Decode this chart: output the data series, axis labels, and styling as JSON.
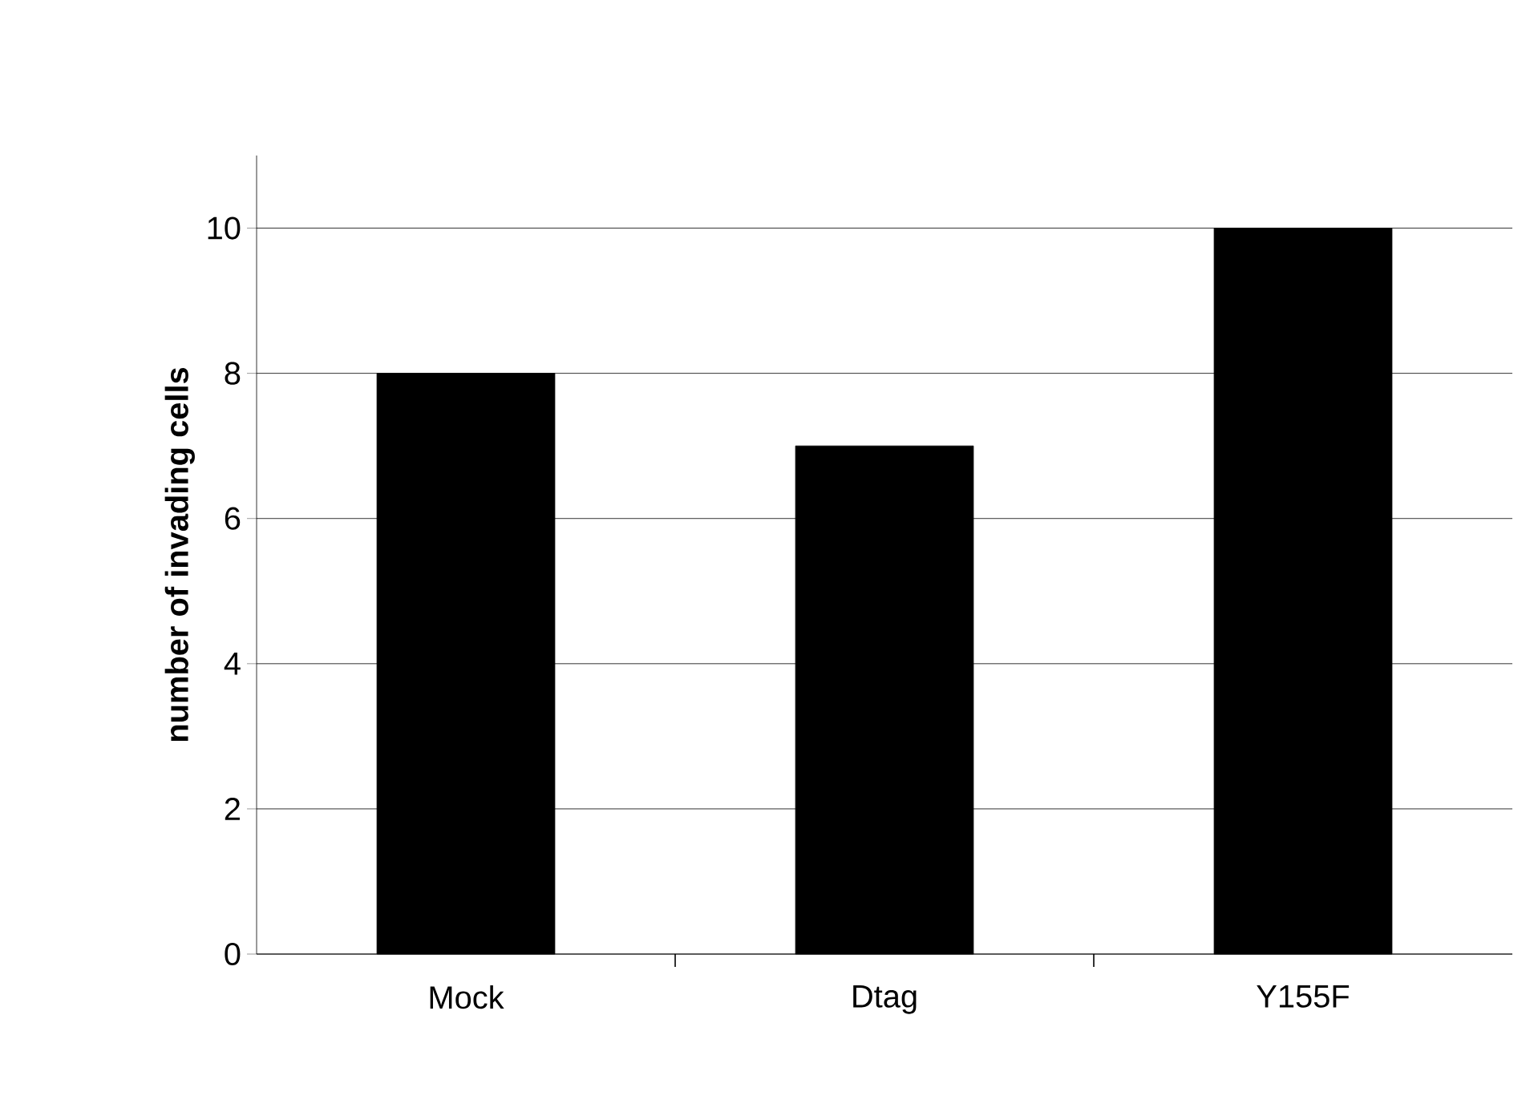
{
  "chart_data": {
    "type": "bar",
    "ylabel": "number of invading cells",
    "categories": [
      "Mock",
      "Dtag",
      "Y155F"
    ],
    "values": [
      8,
      7,
      10
    ],
    "color": "#000000",
    "ylim": [
      0,
      11
    ],
    "yticks": [
      0,
      2,
      4,
      6,
      8,
      10
    ],
    "grid": "y"
  }
}
